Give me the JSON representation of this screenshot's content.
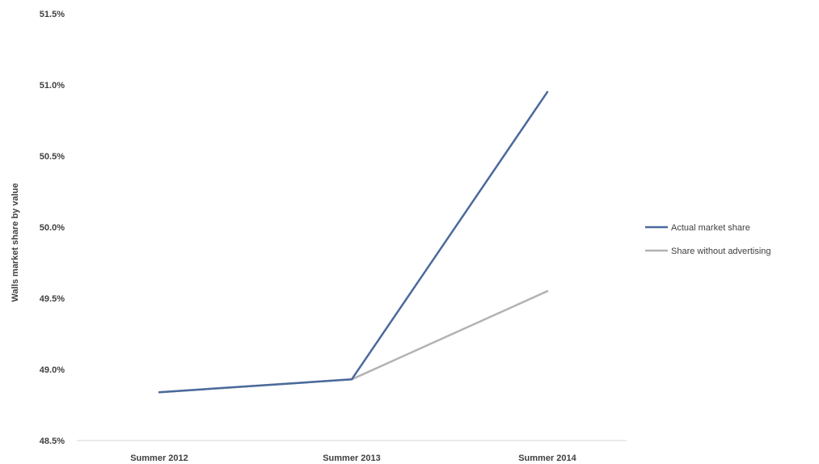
{
  "chart_data": {
    "type": "line",
    "categories": [
      "Summer 2012",
      "Summer 2013",
      "Summer 2014"
    ],
    "series": [
      {
        "name": "Actual market share",
        "values": [
          48.84,
          48.93,
          50.95
        ],
        "color": "#4a6a9b"
      },
      {
        "name": "Share without advertising",
        "values": [
          48.84,
          48.93,
          49.55
        ],
        "color": "#b3b3b3"
      }
    ],
    "ylabel": "Walls market share by value",
    "ylim": [
      48.5,
      51.5
    ],
    "yticks": [
      "48.5%",
      "49.0%",
      "49.5%",
      "50.0%",
      "50.5%",
      "51.0%",
      "51.5%"
    ],
    "grid": false,
    "legend_position": "right"
  }
}
